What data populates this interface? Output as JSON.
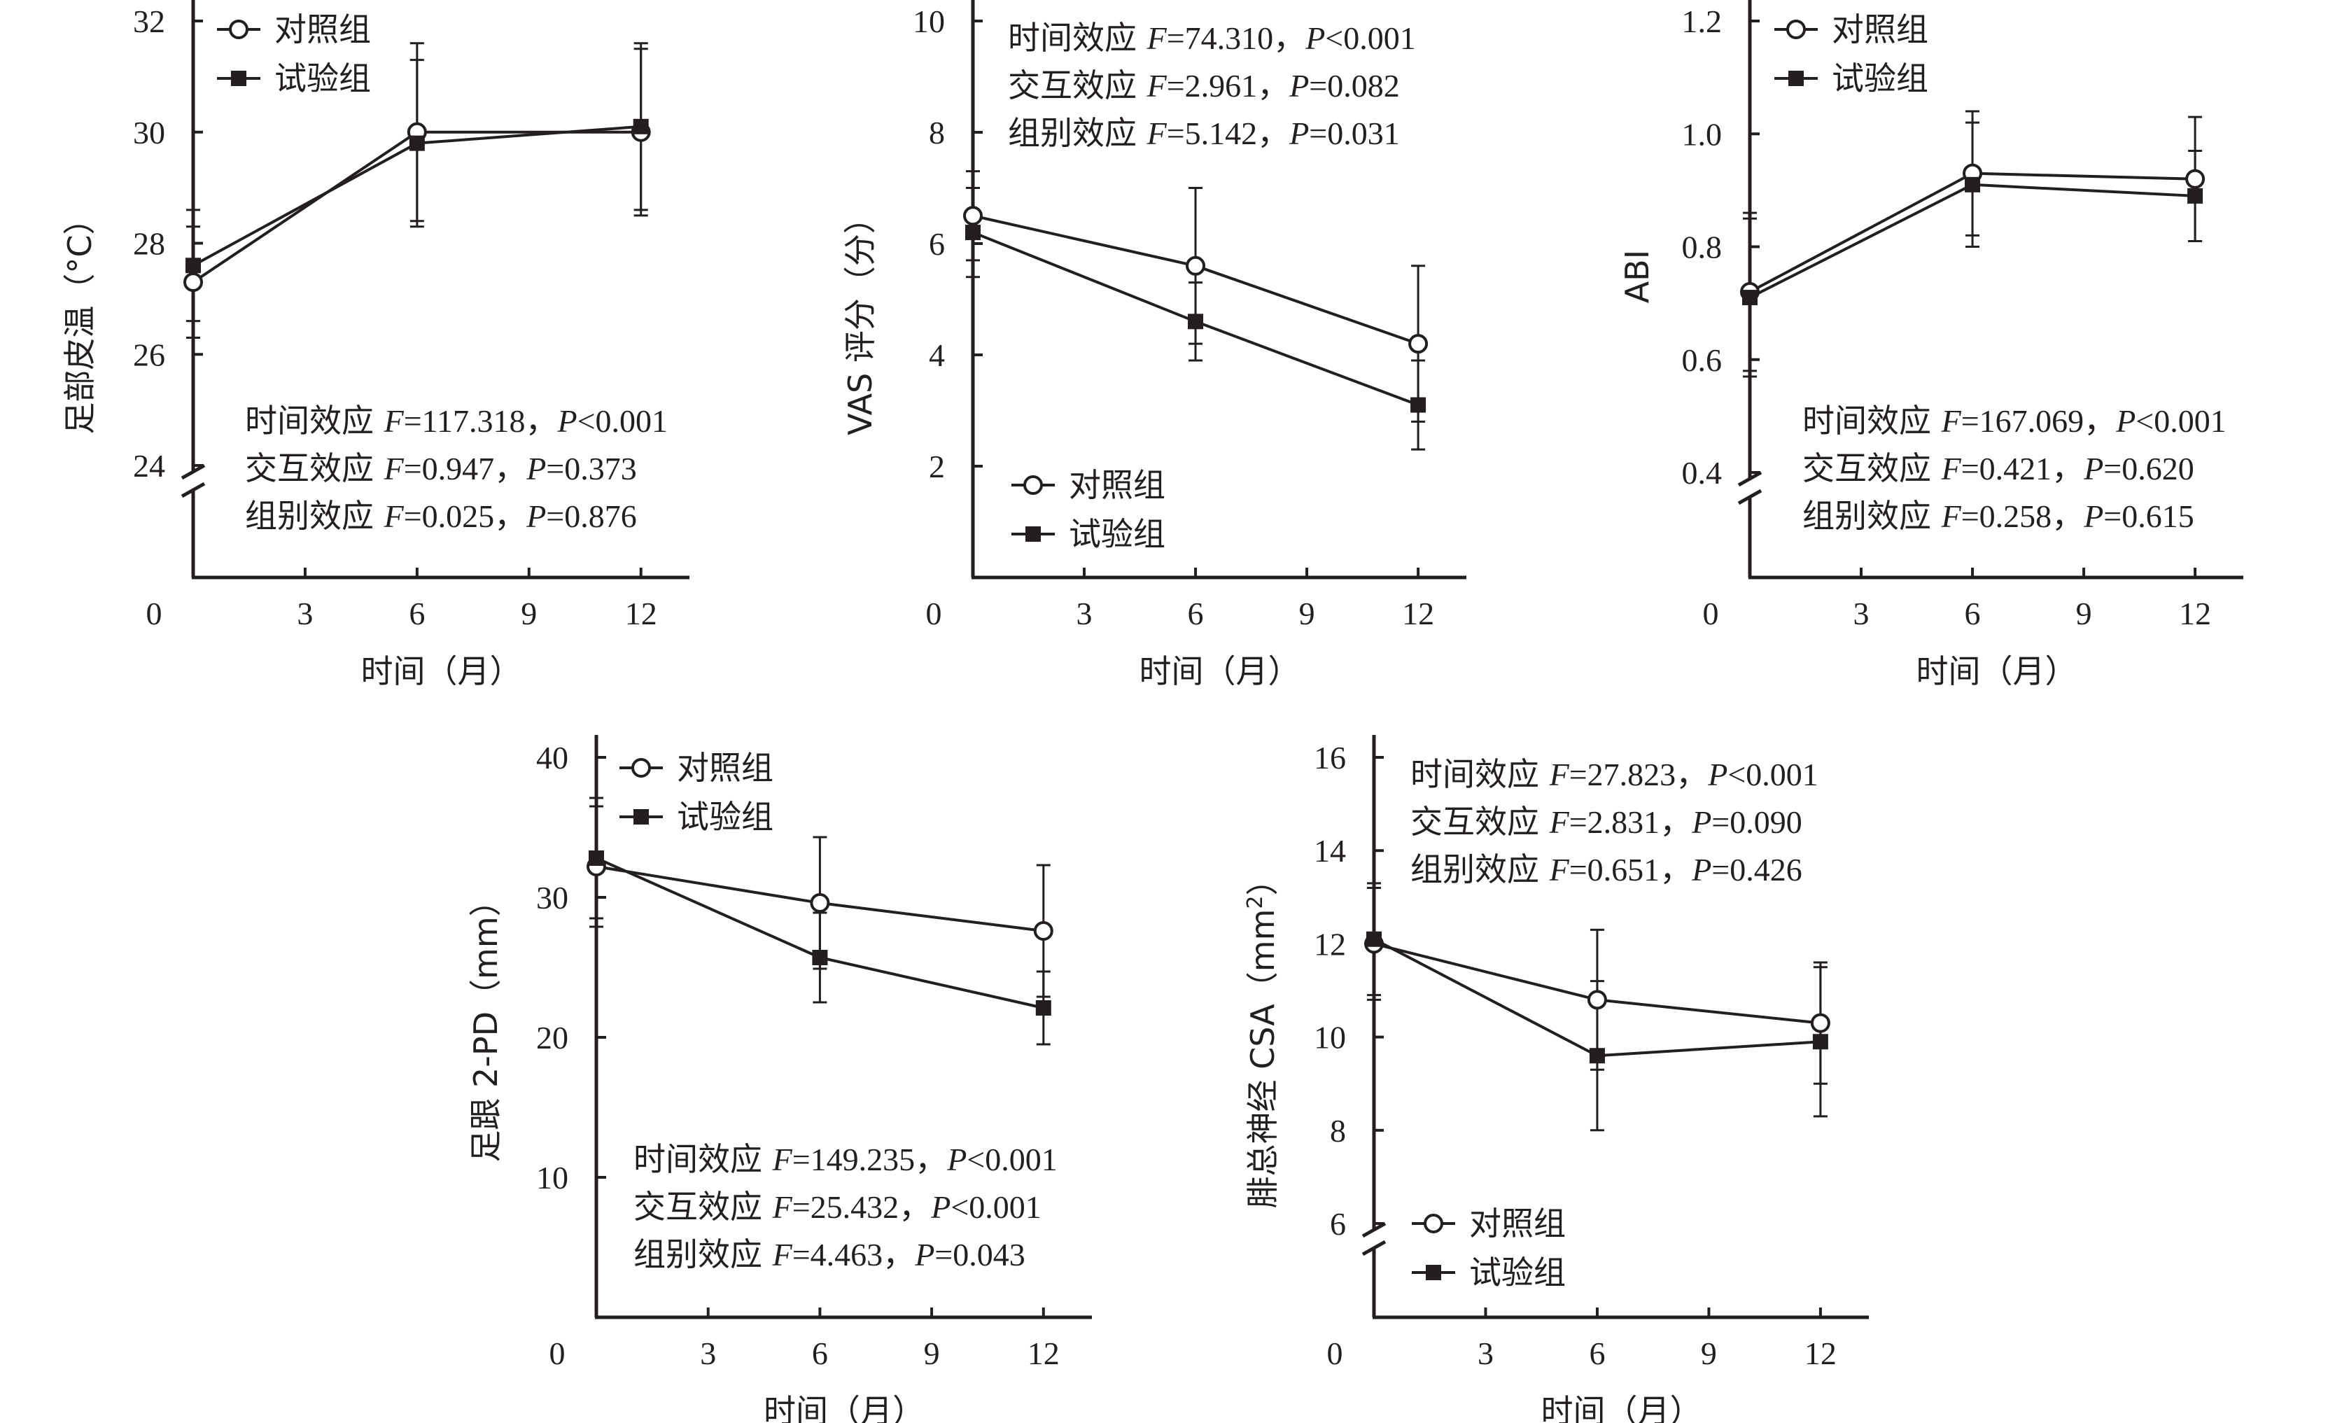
{
  "chart_data": [
    {
      "type": "line",
      "xlabel": "时间（月）",
      "ylabel": "足部皮温（°C）",
      "x_ticks": [
        0,
        3,
        6,
        9,
        12
      ],
      "y_ticks": [
        24,
        26,
        28,
        30,
        32
      ],
      "xlim": [
        0,
        13.3
      ],
      "ylim": [
        24,
        32
      ],
      "y_axis_break": true,
      "legend_placement": "top-left",
      "series": [
        {
          "name": "对照组",
          "marker": "open-circle",
          "x": [
            0,
            6,
            12
          ],
          "values": [
            27.3,
            30.0,
            30.0
          ],
          "err": [
            1.0,
            1.6,
            1.5
          ]
        },
        {
          "name": "试验组",
          "marker": "filled-square",
          "x": [
            0,
            6,
            12
          ],
          "values": [
            27.6,
            29.8,
            30.1
          ],
          "err": [
            1.0,
            1.5,
            1.5
          ]
        }
      ],
      "stats": [
        {
          "label": "时间效应",
          "F": "117.318",
          "P": "<0.001"
        },
        {
          "label": "交互效应",
          "F": "0.947",
          "P": "=0.373"
        },
        {
          "label": "组别效应",
          "F": "0.025",
          "P": "=0.876"
        }
      ],
      "stats_placement": "bottom"
    },
    {
      "type": "line",
      "xlabel": "时间（月）",
      "ylabel": "VAS 评分（分）",
      "x_ticks": [
        0,
        3,
        6,
        9,
        12
      ],
      "y_ticks": [
        2,
        4,
        6,
        8,
        10
      ],
      "xlim": [
        0,
        13.3
      ],
      "ylim": [
        0,
        10
      ],
      "y_axis_break": false,
      "legend_placement": "bottom-left",
      "series": [
        {
          "name": "对照组",
          "marker": "open-circle",
          "x": [
            0,
            6,
            12
          ],
          "values": [
            6.5,
            5.6,
            4.2
          ],
          "err": [
            0.8,
            1.4,
            1.4
          ]
        },
        {
          "name": "试验组",
          "marker": "filled-square",
          "x": [
            0,
            6,
            12
          ],
          "values": [
            6.2,
            4.6,
            3.1
          ],
          "err": [
            0.8,
            0.7,
            0.8
          ]
        }
      ],
      "stats": [
        {
          "label": "时间效应",
          "F": "74.310",
          "P": "<0.001"
        },
        {
          "label": "交互效应",
          "F": "2.961",
          "P": "=0.082"
        },
        {
          "label": "组别效应",
          "F": "5.142",
          "P": "=0.031"
        }
      ],
      "stats_placement": "top"
    },
    {
      "type": "line",
      "xlabel": "时间（月）",
      "ylabel": "ABI",
      "x_ticks": [
        0,
        3,
        6,
        9,
        12
      ],
      "y_ticks": [
        0.4,
        0.6,
        0.8,
        1.0,
        1.2
      ],
      "y_tick_labels": [
        "0.4",
        "0.6",
        "0.8",
        "1.0",
        "1.2"
      ],
      "xlim": [
        0,
        13.3
      ],
      "ylim": [
        0.4,
        1.2
      ],
      "y_axis_break": true,
      "legend_placement": "top-left",
      "series": [
        {
          "name": "对照组",
          "marker": "open-circle",
          "x": [
            0,
            6,
            12
          ],
          "values": [
            0.72,
            0.93,
            0.92
          ],
          "err": [
            0.14,
            0.11,
            0.11
          ]
        },
        {
          "name": "试验组",
          "marker": "filled-square",
          "x": [
            0,
            6,
            12
          ],
          "values": [
            0.71,
            0.91,
            0.89
          ],
          "err": [
            0.14,
            0.11,
            0.08
          ]
        }
      ],
      "stats": [
        {
          "label": "时间效应",
          "F": "167.069",
          "P": "<0.001"
        },
        {
          "label": "交互效应",
          "F": "0.421",
          "P": "=0.620"
        },
        {
          "label": "组别效应",
          "F": "0.258",
          "P": "=0.615"
        }
      ],
      "stats_placement": "bottom"
    },
    {
      "type": "line",
      "xlabel": "时间（月）",
      "ylabel": "足跟 2-PD（mm）",
      "x_ticks": [
        0,
        3,
        6,
        9,
        12
      ],
      "y_ticks": [
        10,
        20,
        30,
        40
      ],
      "xlim": [
        0,
        13.3
      ],
      "ylim": [
        0,
        40
      ],
      "y_axis_break": false,
      "legend_placement": "top-left",
      "series": [
        {
          "name": "对照组",
          "marker": "open-circle",
          "x": [
            0,
            6,
            12
          ],
          "values": [
            32.2,
            29.6,
            27.6
          ],
          "err": [
            4.3,
            4.7,
            4.7
          ]
        },
        {
          "name": "试验组",
          "marker": "filled-square",
          "x": [
            0,
            6,
            12
          ],
          "values": [
            32.8,
            25.7,
            22.1
          ],
          "err": [
            4.3,
            3.2,
            2.6
          ]
        }
      ],
      "stats": [
        {
          "label": "时间效应",
          "F": "149.235",
          "P": "<0.001"
        },
        {
          "label": "交互效应",
          "F": "25.432",
          "P": "<0.001"
        },
        {
          "label": "组别效应",
          "F": "4.463",
          "P": "=0.043"
        }
      ],
      "stats_placement": "bottom"
    },
    {
      "type": "line",
      "xlabel": "时间（月）",
      "ylabel_main": "腓总神经 CSA（mm",
      "ylabel_sup": "2",
      "ylabel_end": "）",
      "x_ticks": [
        0,
        3,
        6,
        9,
        12
      ],
      "y_ticks": [
        6,
        8,
        10,
        12,
        14,
        16
      ],
      "xlim": [
        0,
        13.3
      ],
      "ylim": [
        6,
        16
      ],
      "y_axis_break": true,
      "legend_placement": "bottom-left",
      "series": [
        {
          "name": "对照组",
          "marker": "open-circle",
          "x": [
            0,
            6,
            12
          ],
          "values": [
            12.0,
            10.8,
            10.3
          ],
          "err": [
            1.2,
            1.5,
            1.3
          ]
        },
        {
          "name": "试验组",
          "marker": "filled-square",
          "x": [
            0,
            6,
            12
          ],
          "values": [
            12.1,
            9.6,
            9.9
          ],
          "err": [
            1.2,
            1.6,
            1.6
          ]
        }
      ],
      "stats": [
        {
          "label": "时间效应",
          "F": "27.823",
          "P": "<0.001"
        },
        {
          "label": "交互效应",
          "F": "2.831",
          "P": "=0.090"
        },
        {
          "label": "组别效应",
          "F": "0.651",
          "P": "=0.426"
        }
      ],
      "stats_placement": "top"
    }
  ]
}
